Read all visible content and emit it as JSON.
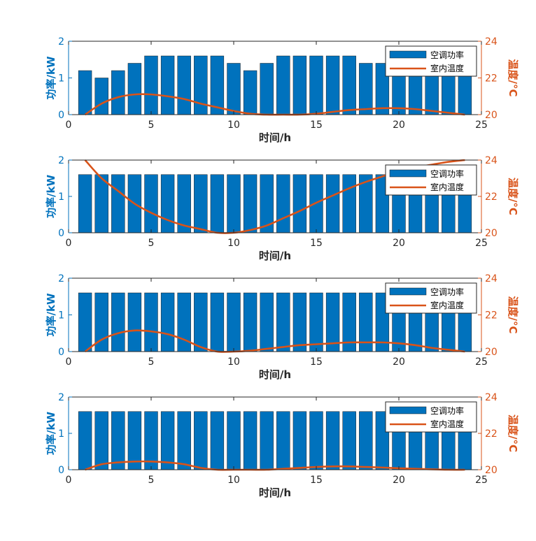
{
  "chart_data": [
    {
      "type": "bar",
      "xlabel": "时间/h",
      "ylabel_left": "功率/kW",
      "ylabel_right": "温度/°C",
      "xlim": [
        0,
        25
      ],
      "ylim_left": [
        0,
        2
      ],
      "ylim_right": [
        20,
        24
      ],
      "xticks": [
        "0",
        "5",
        "10",
        "15",
        "20",
        "25"
      ],
      "yticks_left": [
        "0",
        "1",
        "2"
      ],
      "yticks_right": [
        "20",
        "22",
        "24"
      ],
      "legend": [
        "空调功率",
        "室内温度"
      ],
      "legend_position": "top-right",
      "series": [
        {
          "name": "空调功率",
          "kind": "bar",
          "color": "#0072BD",
          "x": [
            1,
            2,
            3,
            4,
            5,
            6,
            7,
            8,
            9,
            10,
            11,
            12,
            13,
            14,
            15,
            16,
            17,
            18,
            19,
            20,
            21,
            22,
            23,
            24
          ],
          "values": [
            1.2,
            1.0,
            1.2,
            1.4,
            1.6,
            1.6,
            1.6,
            1.6,
            1.6,
            1.4,
            1.2,
            1.4,
            1.6,
            1.6,
            1.6,
            1.6,
            1.6,
            1.4,
            1.4,
            1.4,
            1.6,
            1.6,
            1.6,
            1.6
          ]
        },
        {
          "name": "室内温度",
          "kind": "line",
          "color": "#D95319",
          "x": [
            1,
            2,
            3,
            4,
            5,
            6,
            7,
            8,
            9,
            10,
            11,
            12,
            13,
            14,
            15,
            16,
            17,
            18,
            19,
            20,
            21,
            22,
            23,
            24
          ],
          "values": [
            20.0,
            20.6,
            20.95,
            21.1,
            21.1,
            21.0,
            20.85,
            20.6,
            20.4,
            20.2,
            20.05,
            20.0,
            20.0,
            20.0,
            20.05,
            20.15,
            20.25,
            20.3,
            20.35,
            20.35,
            20.3,
            20.2,
            20.1,
            20.0
          ]
        }
      ]
    },
    {
      "type": "bar",
      "xlabel": "时间/h",
      "ylabel_left": "功率/kW",
      "ylabel_right": "温度/°C",
      "xlim": [
        0,
        25
      ],
      "ylim_left": [
        0,
        2
      ],
      "ylim_right": [
        20,
        24
      ],
      "xticks": [
        "0",
        "5",
        "10",
        "15",
        "20",
        "25"
      ],
      "yticks_left": [
        "0",
        "1",
        "2"
      ],
      "yticks_right": [
        "20",
        "22",
        "24"
      ],
      "legend": [
        "空调功率",
        "室内温度"
      ],
      "legend_position": "top-right",
      "series": [
        {
          "name": "空调功率",
          "kind": "bar",
          "color": "#0072BD",
          "x": [
            1,
            2,
            3,
            4,
            5,
            6,
            7,
            8,
            9,
            10,
            11,
            12,
            13,
            14,
            15,
            16,
            17,
            18,
            19,
            20,
            21,
            22,
            23,
            24
          ],
          "values": [
            1.6,
            1.6,
            1.6,
            1.6,
            1.6,
            1.6,
            1.6,
            1.6,
            1.6,
            1.6,
            1.6,
            1.6,
            1.6,
            1.6,
            1.6,
            1.6,
            1.6,
            1.6,
            1.6,
            1.6,
            1.6,
            1.6,
            1.6,
            1.6
          ]
        },
        {
          "name": "室内温度",
          "kind": "line",
          "color": "#D95319",
          "x": [
            1,
            2,
            3,
            4,
            5,
            6,
            7,
            8,
            9,
            10,
            11,
            12,
            13,
            14,
            15,
            16,
            17,
            18,
            19,
            20,
            21,
            22,
            23,
            24
          ],
          "values": [
            24.0,
            23.0,
            22.3,
            21.6,
            21.1,
            20.7,
            20.4,
            20.2,
            20.0,
            20.0,
            20.15,
            20.4,
            20.8,
            21.2,
            21.65,
            22.05,
            22.45,
            22.8,
            23.1,
            23.4,
            23.6,
            23.75,
            23.9,
            24.0
          ]
        }
      ]
    },
    {
      "type": "bar",
      "xlabel": "时间/h",
      "ylabel_left": "功率/kW",
      "ylabel_right": "温度/°C",
      "xlim": [
        0,
        25
      ],
      "ylim_left": [
        0,
        2
      ],
      "ylim_right": [
        20,
        24
      ],
      "xticks": [
        "0",
        "5",
        "10",
        "15",
        "20",
        "25"
      ],
      "yticks_left": [
        "0",
        "1",
        "2"
      ],
      "yticks_right": [
        "20",
        "22",
        "24"
      ],
      "legend": [
        "空调功率",
        "室内温度"
      ],
      "legend_position": "top-right",
      "series": [
        {
          "name": "空调功率",
          "kind": "bar",
          "color": "#0072BD",
          "x": [
            1,
            2,
            3,
            4,
            5,
            6,
            7,
            8,
            9,
            10,
            11,
            12,
            13,
            14,
            15,
            16,
            17,
            18,
            19,
            20,
            21,
            22,
            23,
            24
          ],
          "values": [
            1.6,
            1.6,
            1.6,
            1.6,
            1.6,
            1.6,
            1.6,
            1.6,
            1.6,
            1.6,
            1.6,
            1.6,
            1.6,
            1.6,
            1.6,
            1.6,
            1.6,
            1.6,
            1.6,
            1.6,
            1.6,
            1.6,
            1.6,
            1.6
          ]
        },
        {
          "name": "室内温度",
          "kind": "line",
          "color": "#D95319",
          "x": [
            1,
            2,
            3,
            4,
            5,
            6,
            7,
            8,
            9,
            10,
            11,
            12,
            13,
            14,
            15,
            16,
            17,
            18,
            19,
            20,
            21,
            22,
            23,
            24
          ],
          "values": [
            20.0,
            20.65,
            21.0,
            21.15,
            21.1,
            20.95,
            20.65,
            20.25,
            20.0,
            20.0,
            20.05,
            20.15,
            20.25,
            20.35,
            20.4,
            20.45,
            20.5,
            20.5,
            20.5,
            20.45,
            20.35,
            20.2,
            20.1,
            20.0
          ]
        }
      ]
    },
    {
      "type": "bar",
      "xlabel": "时间/h",
      "ylabel_left": "功率/kW",
      "ylabel_right": "温度/°C",
      "xlim": [
        0,
        25
      ],
      "ylim_left": [
        0,
        2
      ],
      "ylim_right": [
        20,
        24
      ],
      "xticks": [
        "0",
        "5",
        "10",
        "15",
        "20",
        "25"
      ],
      "yticks_left": [
        "0",
        "1",
        "2"
      ],
      "yticks_right": [
        "20",
        "22",
        "24"
      ],
      "legend": [
        "空调功率",
        "室内温度"
      ],
      "legend_position": "top-right",
      "series": [
        {
          "name": "空调功率",
          "kind": "bar",
          "color": "#0072BD",
          "x": [
            1,
            2,
            3,
            4,
            5,
            6,
            7,
            8,
            9,
            10,
            11,
            12,
            13,
            14,
            15,
            16,
            17,
            18,
            19,
            20,
            21,
            22,
            23,
            24
          ],
          "values": [
            1.6,
            1.6,
            1.6,
            1.6,
            1.6,
            1.6,
            1.6,
            1.6,
            1.6,
            1.6,
            1.6,
            1.6,
            1.6,
            1.6,
            1.6,
            1.6,
            1.6,
            1.6,
            1.6,
            1.6,
            1.6,
            1.6,
            1.6,
            1.6
          ]
        },
        {
          "name": "室内温度",
          "kind": "line",
          "color": "#D95319",
          "x": [
            1,
            2,
            3,
            4,
            5,
            6,
            7,
            8,
            9,
            10,
            11,
            12,
            13,
            14,
            15,
            16,
            17,
            18,
            19,
            20,
            21,
            22,
            23,
            24
          ],
          "values": [
            20.0,
            20.3,
            20.4,
            20.45,
            20.45,
            20.4,
            20.3,
            20.1,
            20.0,
            20.0,
            20.0,
            20.0,
            20.05,
            20.1,
            20.15,
            20.18,
            20.18,
            20.15,
            20.12,
            20.08,
            20.05,
            20.02,
            20.0,
            20.0
          ]
        }
      ]
    }
  ]
}
